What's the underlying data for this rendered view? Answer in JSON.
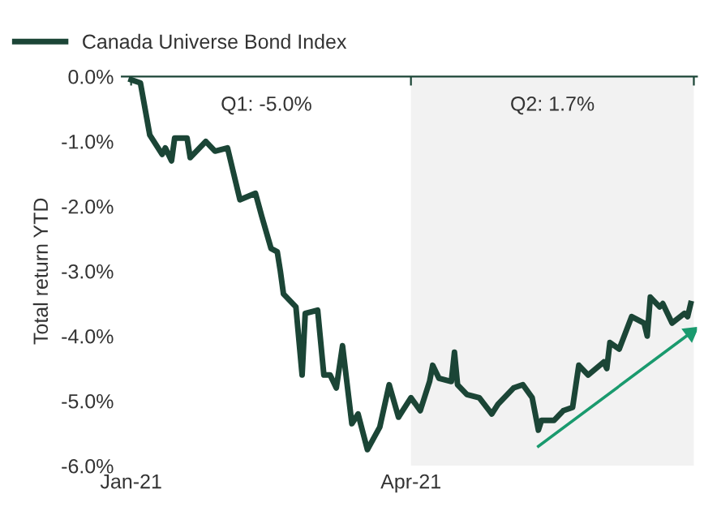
{
  "chart_data": {
    "type": "line",
    "ylabel": "Total return YTD",
    "legend": "top left",
    "grid": false,
    "xlim": [
      "2020-12-29",
      "2021-07-02"
    ],
    "xticks": [
      {
        "value": "2021-01-01",
        "label": "Jan-21"
      },
      {
        "value": "2021-04-01",
        "label": "Apr-21"
      },
      {
        "value": "2021-07-01",
        "label": null
      }
    ],
    "ylim": [
      -6.0,
      0
    ],
    "yticks": [
      {
        "value": 0,
        "label": "0.0%"
      },
      {
        "value": -1,
        "label": "-1.0%"
      },
      {
        "value": -2,
        "label": "-2.0%"
      },
      {
        "value": -3,
        "label": "-3.0%"
      },
      {
        "value": -4,
        "label": "-4.0%"
      },
      {
        "value": -5,
        "label": "-5.0%"
      },
      {
        "value": -6,
        "label": "-6.0%"
      }
    ],
    "bands": [
      {
        "axis": "x",
        "from": "2021-04-01",
        "to": "2021-07-01",
        "color": "#f2f2f2",
        "label": "Q2: 1.7%"
      }
    ],
    "annotations": [
      "Q1: -5.0%"
    ],
    "series": [
      {
        "name": "Canada Universe Bond Index",
        "color": "#1b4536",
        "x": [
          "2021-01-01",
          "2021-01-04",
          "2021-01-07",
          "2021-01-11",
          "2021-01-12",
          "2021-01-14",
          "2021-01-15",
          "2021-01-19",
          "2021-01-20",
          "2021-01-25",
          "2021-01-28",
          "2021-02-01",
          "2021-02-05",
          "2021-02-10",
          "2021-02-12",
          "2021-02-15",
          "2021-02-17",
          "2021-02-18",
          "2021-02-19",
          "2021-02-23",
          "2021-02-25",
          "2021-02-26",
          "2021-03-02",
          "2021-03-04",
          "2021-03-06",
          "2021-03-08",
          "2021-03-10",
          "2021-03-13",
          "2021-03-15",
          "2021-03-18",
          "2021-03-22",
          "2021-03-25",
          "2021-03-28",
          "2021-04-01",
          "2021-04-04",
          "2021-04-07",
          "2021-04-08",
          "2021-04-10",
          "2021-04-14",
          "2021-04-15",
          "2021-04-16",
          "2021-04-19",
          "2021-04-23",
          "2021-04-27",
          "2021-04-29",
          "2021-05-04",
          "2021-05-07",
          "2021-05-10",
          "2021-05-12",
          "2021-05-13",
          "2021-05-17",
          "2021-05-20",
          "2021-05-23",
          "2021-05-25",
          "2021-05-28",
          "2021-06-02",
          "2021-06-03",
          "2021-06-04",
          "2021-06-07",
          "2021-06-11",
          "2021-06-15",
          "2021-06-16",
          "2021-06-17",
          "2021-06-20",
          "2021-06-21",
          "2021-06-24",
          "2021-06-28",
          "2021-06-29",
          "2021-06-30"
        ],
        "values": [
          -0.05,
          -0.1,
          -0.9,
          -1.2,
          -1.1,
          -1.3,
          -0.95,
          -0.95,
          -1.25,
          -1.0,
          -1.15,
          -1.1,
          -1.9,
          -1.8,
          -2.15,
          -2.65,
          -2.7,
          -3.0,
          -3.35,
          -3.55,
          -4.6,
          -3.65,
          -3.6,
          -4.6,
          -4.6,
          -4.8,
          -4.15,
          -5.35,
          -5.2,
          -5.75,
          -5.4,
          -4.75,
          -5.25,
          -4.95,
          -5.15,
          -4.7,
          -4.45,
          -4.65,
          -4.7,
          -4.25,
          -4.75,
          -4.9,
          -4.95,
          -5.2,
          -5.05,
          -4.8,
          -4.75,
          -4.95,
          -5.45,
          -5.3,
          -5.3,
          -5.15,
          -5.1,
          -4.45,
          -4.6,
          -4.4,
          -4.5,
          -4.1,
          -4.2,
          -3.7,
          -3.8,
          -4.0,
          -3.4,
          -3.55,
          -3.5,
          -3.8,
          -3.65,
          -3.7,
          -3.5
        ]
      },
      {
        "type": "line",
        "color": "#1a9a6e",
        "x": [
          "2021-05-12",
          "2021-06-30"
        ],
        "values": [
          -5.7,
          -3.95
        ]
      }
    ]
  }
}
